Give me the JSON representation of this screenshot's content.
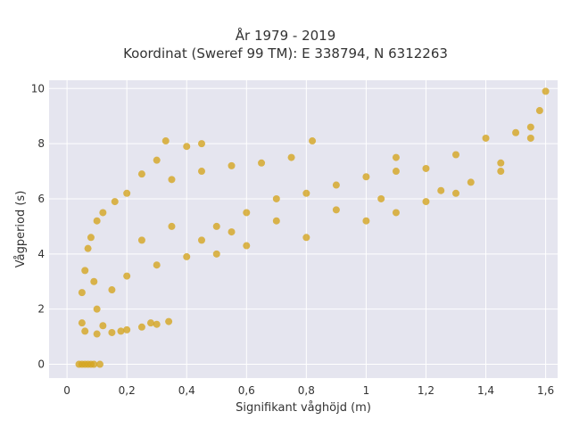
{
  "chart_data": {
    "type": "scatter",
    "title": "År 1979 - 2019",
    "subtitle": "Koordinat (Sweref 99 TM): E 338794, N 6312263",
    "xlabel": "Signifikant våghöjd (m)",
    "ylabel": "Vågperiod (s)",
    "xlim": [
      -0.06,
      1.64
    ],
    "ylim": [
      -0.5,
      10.3
    ],
    "x_ticks": [
      0,
      0.2,
      0.4,
      0.6,
      0.8,
      1,
      1.2,
      1.4,
      1.6
    ],
    "x_tick_labels": [
      "0",
      "0,2",
      "0,4",
      "0,6",
      "0,8",
      "1",
      "1,2",
      "1,4",
      "1,6"
    ],
    "y_ticks": [
      0,
      2,
      4,
      6,
      8,
      10
    ],
    "y_tick_labels": [
      "0",
      "2",
      "4",
      "6",
      "8",
      "10"
    ],
    "grid": true,
    "legend": "none",
    "colors": {
      "marker": "#d4a520",
      "plot_bg": "#e5e5ef",
      "grid": "#ffffff"
    },
    "series": [
      {
        "points": [
          [
            0.04,
            0
          ],
          [
            0.05,
            0
          ],
          [
            0.06,
            0
          ],
          [
            0.07,
            0
          ],
          [
            0.08,
            0
          ],
          [
            0.09,
            0
          ],
          [
            0.11,
            0
          ],
          [
            0.06,
            1.2
          ],
          [
            0.1,
            1.1
          ],
          [
            0.15,
            1.15
          ],
          [
            0.2,
            1.25
          ],
          [
            0.25,
            1.35
          ],
          [
            0.3,
            1.45
          ],
          [
            0.34,
            1.55
          ],
          [
            0.05,
            1.5
          ],
          [
            0.05,
            2.6
          ],
          [
            0.06,
            3.4
          ],
          [
            0.07,
            4.2
          ],
          [
            0.08,
            4.6
          ],
          [
            0.1,
            5.2
          ],
          [
            0.12,
            5.5
          ],
          [
            0.16,
            5.9
          ],
          [
            0.2,
            6.2
          ],
          [
            0.25,
            6.9
          ],
          [
            0.3,
            7.4
          ],
          [
            0.33,
            8.1
          ],
          [
            0.4,
            7.9
          ],
          [
            0.45,
            8.0
          ],
          [
            0.1,
            2.0
          ],
          [
            0.15,
            2.7
          ],
          [
            0.2,
            3.2
          ],
          [
            0.3,
            3.6
          ],
          [
            0.4,
            3.9
          ],
          [
            0.5,
            4.0
          ],
          [
            0.6,
            4.3
          ],
          [
            0.8,
            4.6
          ],
          [
            1.0,
            5.2
          ],
          [
            1.1,
            5.5
          ],
          [
            1.2,
            5.9
          ],
          [
            1.3,
            6.2
          ],
          [
            1.45,
            7.0
          ],
          [
            1.55,
            8.2
          ],
          [
            1.58,
            9.2
          ],
          [
            1.6,
            9.9
          ],
          [
            0.5,
            5.0
          ],
          [
            0.6,
            5.5
          ],
          [
            0.7,
            6.0
          ],
          [
            0.8,
            6.2
          ],
          [
            0.9,
            6.5
          ],
          [
            1.0,
            6.8
          ],
          [
            1.1,
            7.0
          ],
          [
            1.2,
            7.1
          ],
          [
            0.82,
            8.1
          ],
          [
            1.1,
            7.5
          ],
          [
            1.3,
            7.6
          ],
          [
            1.4,
            8.2
          ],
          [
            1.5,
            8.4
          ],
          [
            1.55,
            8.6
          ],
          [
            0.35,
            6.7
          ],
          [
            0.45,
            7.0
          ],
          [
            0.55,
            7.2
          ],
          [
            0.65,
            7.3
          ],
          [
            0.75,
            7.5
          ],
          [
            0.25,
            4.5
          ],
          [
            0.35,
            5.0
          ],
          [
            0.45,
            4.5
          ],
          [
            0.55,
            4.8
          ],
          [
            0.7,
            5.2
          ],
          [
            0.9,
            5.6
          ],
          [
            1.05,
            6.0
          ],
          [
            1.25,
            6.3
          ],
          [
            1.35,
            6.6
          ],
          [
            1.45,
            7.3
          ],
          [
            0.18,
            1.2
          ],
          [
            0.28,
            1.5
          ],
          [
            0.12,
            1.4
          ],
          [
            0.09,
            3.0
          ]
        ]
      }
    ]
  }
}
